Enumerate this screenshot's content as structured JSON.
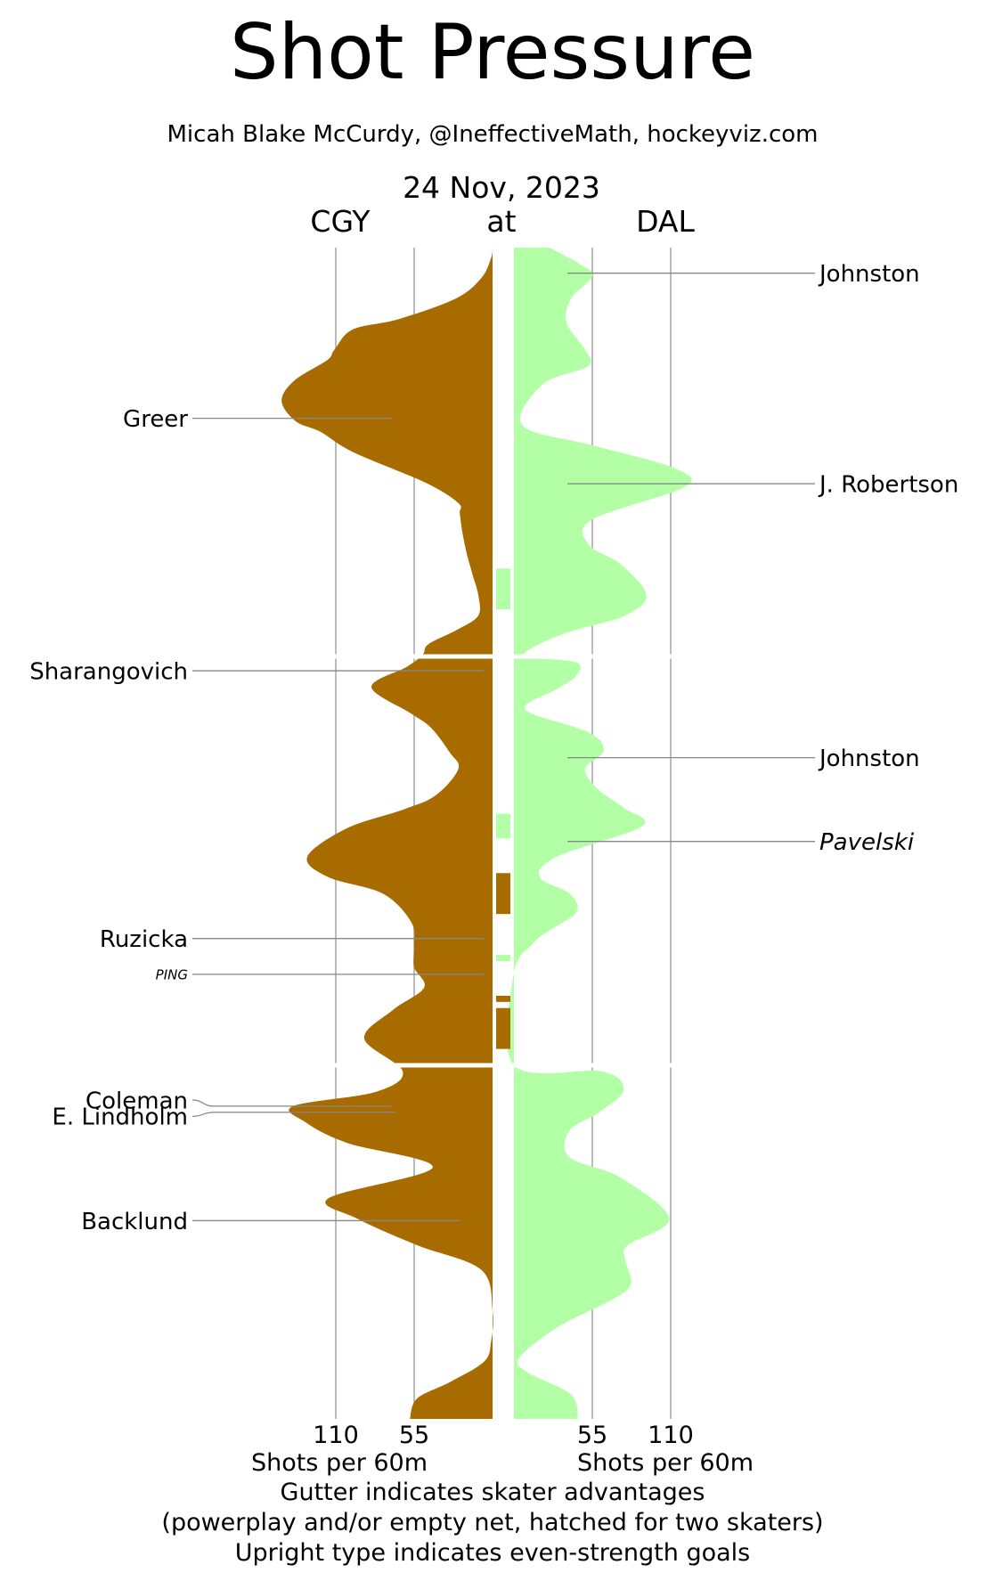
{
  "title": "Shot Pressure",
  "subtitle": "Micah Blake McCurdy, @IneffectiveMath, hockeyviz.com",
  "date": "24 Nov, 2023",
  "teams": {
    "away": "CGY",
    "separator": "at",
    "home": "DAL"
  },
  "colors": {
    "away": "#a86b00",
    "home": "#b3ffa6",
    "grid": "#aaaaaa",
    "leader": "#888888"
  },
  "footer": {
    "away_axis_label": "Shots per 60m",
    "home_axis_label": "Shots per 60m",
    "note1": "Gutter indicates skater advantages",
    "note2": "(powerplay and/or empty net, hatched for two skaters)",
    "note3": "Upright type indicates even-strength goals"
  },
  "chart_data": {
    "type": "area",
    "orientation": "vertical-mirrored",
    "y_axis": "game minute",
    "x_axis": "Shots per 60m",
    "xlim": [
      0,
      165
    ],
    "ticks": [
      55,
      110
    ],
    "tick_labels": [
      "55",
      "110"
    ],
    "periods": [
      [
        0,
        20
      ],
      [
        20,
        40
      ],
      [
        40,
        57.3
      ]
    ],
    "series": [
      {
        "name": "CGY",
        "side": "left",
        "color": "#a86b00",
        "points": [
          [
            0,
            0
          ],
          [
            0.5,
            1
          ],
          [
            1.5,
            8
          ],
          [
            2.5,
            26
          ],
          [
            3.5,
            66
          ],
          [
            4,
            98
          ],
          [
            5,
            111
          ],
          [
            5.5,
            116
          ],
          [
            6.5,
            139
          ],
          [
            7.5,
            148
          ],
          [
            8.5,
            138
          ],
          [
            9,
            121
          ],
          [
            10,
            98
          ],
          [
            11.5,
            47
          ],
          [
            12.5,
            24
          ],
          [
            13,
            23
          ],
          [
            14,
            21
          ],
          [
            15,
            18
          ],
          [
            16,
            14
          ],
          [
            17,
            10
          ],
          [
            18,
            10
          ],
          [
            18.7,
            25
          ],
          [
            19.4,
            45
          ],
          [
            19.9,
            49
          ],
          [
            20.5,
            60
          ],
          [
            21.5,
            85
          ],
          [
            22.8,
            57
          ],
          [
            23.5,
            43
          ],
          [
            24.7,
            30
          ],
          [
            25.5,
            24
          ],
          [
            26.8,
            40
          ],
          [
            27.5,
            63
          ],
          [
            28.4,
            102
          ],
          [
            29.8,
            130
          ],
          [
            30.8,
            115
          ],
          [
            31.6,
            77
          ],
          [
            33,
            57
          ],
          [
            34.2,
            55
          ],
          [
            35.2,
            55
          ],
          [
            36.2,
            48
          ],
          [
            37.3,
            70
          ],
          [
            38.7,
            90
          ],
          [
            40.3,
            63
          ],
          [
            41.3,
            82
          ],
          [
            42,
            140
          ],
          [
            42.8,
            131
          ],
          [
            43.8,
            102
          ],
          [
            45,
            42
          ],
          [
            46.5,
            115
          ],
          [
            47.5,
            95
          ],
          [
            48.8,
            53
          ],
          [
            50,
            8
          ],
          [
            52,
            0
          ],
          [
            53.5,
            1
          ],
          [
            54.5,
            6
          ],
          [
            55.5,
            30
          ],
          [
            56.3,
            53
          ],
          [
            57.3,
            58
          ]
        ]
      },
      {
        "name": "DAL",
        "side": "right",
        "color": "#b3ffa6",
        "points": [
          [
            0,
            25
          ],
          [
            0.8,
            46
          ],
          [
            1.4,
            55
          ],
          [
            2.5,
            40
          ],
          [
            3.7,
            37
          ],
          [
            5,
            50
          ],
          [
            5.8,
            52
          ],
          [
            6.7,
            20
          ],
          [
            8.7,
            6
          ],
          [
            9.7,
            57
          ],
          [
            10.8,
            113
          ],
          [
            11.7,
            120
          ],
          [
            13.3,
            55
          ],
          [
            14.5,
            52
          ],
          [
            15.5,
            75
          ],
          [
            17,
            93
          ],
          [
            18,
            78
          ],
          [
            18.8,
            39
          ],
          [
            19.5,
            15
          ],
          [
            20,
            9
          ],
          [
            20.3,
            44
          ],
          [
            21,
            43
          ],
          [
            21.6,
            30
          ],
          [
            22.6,
            8
          ],
          [
            23.7,
            52
          ],
          [
            24.6,
            63
          ],
          [
            25.5,
            50
          ],
          [
            26.5,
            59
          ],
          [
            27.4,
            77
          ],
          [
            28.3,
            90
          ],
          [
            29.8,
            30
          ],
          [
            30.8,
            18
          ],
          [
            31.6,
            39
          ],
          [
            32.5,
            44
          ],
          [
            33.4,
            25
          ],
          [
            34,
            14
          ],
          [
            35.5,
            0
          ],
          [
            40,
            0
          ],
          [
            40.3,
            62
          ],
          [
            41.2,
            77
          ],
          [
            42.3,
            60
          ],
          [
            43.2,
            39
          ],
          [
            44.5,
            39
          ],
          [
            45.5,
            75
          ],
          [
            47.5,
            109
          ],
          [
            48.8,
            80
          ],
          [
            49.5,
            78
          ],
          [
            50.7,
            82
          ],
          [
            51.5,
            68
          ],
          [
            52.8,
            31
          ],
          [
            54.3,
            4
          ],
          [
            55,
            9
          ],
          [
            56.1,
            40
          ],
          [
            57.3,
            45
          ]
        ]
      }
    ],
    "gutter": [
      {
        "team": "DAL",
        "start": 15.7,
        "end": 17.7
      },
      {
        "team": "DAL",
        "start": 27.7,
        "end": 28.9
      },
      {
        "team": "CGY",
        "start": 30.6,
        "end": 32.6
      },
      {
        "team": "DAL",
        "start": 34.6,
        "end": 34.9
      },
      {
        "team": "CGY",
        "start": 36.6,
        "end": 36.9
      },
      {
        "team": "CGY",
        "start": 37.2,
        "end": 39.2
      }
    ],
    "goals": [
      {
        "team": "DAL",
        "player": "Johnston",
        "minute": 1.25,
        "even_strength": true,
        "label_size": "normal"
      },
      {
        "team": "CGY",
        "player": "Greer",
        "minute": 8.35,
        "even_strength": true,
        "label_size": "normal"
      },
      {
        "team": "DAL",
        "player": "J. Robertson",
        "minute": 11.55,
        "even_strength": true,
        "label_size": "normal"
      },
      {
        "team": "CGY",
        "player": "Sharangovich",
        "minute": 20.7,
        "even_strength": true,
        "label_size": "normal"
      },
      {
        "team": "DAL",
        "player": "Johnston",
        "minute": 24.95,
        "even_strength": true,
        "label_size": "normal"
      },
      {
        "team": "DAL",
        "player": "Pavelski",
        "minute": 29.05,
        "even_strength": false,
        "label_size": "normal"
      },
      {
        "team": "CGY",
        "player": "Ruzicka",
        "minute": 33.8,
        "even_strength": true,
        "label_size": "normal"
      },
      {
        "team": "CGY",
        "player": "PING",
        "minute": 35.55,
        "even_strength": false,
        "label_size": "small"
      },
      {
        "team": "CGY",
        "player": "Coleman",
        "minute": 42.0,
        "even_strength": true,
        "label_size": "normal",
        "label_minute": 41.7
      },
      {
        "team": "CGY",
        "player": "E. Lindholm",
        "minute": 42.3,
        "even_strength": true,
        "label_size": "normal",
        "label_minute": 42.5
      },
      {
        "team": "CGY",
        "player": "Backlund",
        "minute": 47.6,
        "even_strength": true,
        "label_size": "normal"
      }
    ]
  }
}
